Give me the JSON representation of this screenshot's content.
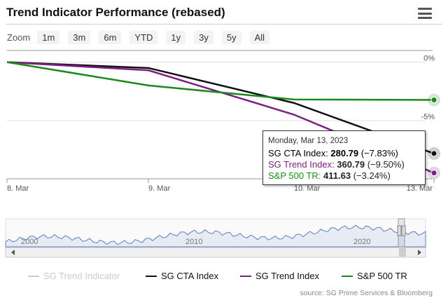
{
  "header": {
    "title": "Trend Indicator Performance (rebased)",
    "menu_icon": "hamburger-menu-icon"
  },
  "zoom": {
    "label": "Zoom",
    "buttons": [
      "1m",
      "3m",
      "6m",
      "YTD",
      "1y",
      "3y",
      "5y",
      "All"
    ]
  },
  "tooltip": {
    "date": "Monday, Mar 13, 2023",
    "rows": [
      {
        "name": "SG CTA Index",
        "value": "280.79",
        "change": "(−7.83%)",
        "color": "#222222"
      },
      {
        "name": "SG Trend Index",
        "value": "360.79",
        "change": "(−9.50%)",
        "color": "#7b1f83"
      },
      {
        "name": "S&P 500 TR",
        "value": "411.63",
        "change": "(−3.24%)",
        "color": "#1b8a1b"
      }
    ]
  },
  "legend": [
    {
      "name": "SG Trend Indicator",
      "color": "#cccccc",
      "hidden": true
    },
    {
      "name": "SG CTA Index",
      "color": "#111111"
    },
    {
      "name": "SG Trend Index",
      "color": "#7b1f83"
    },
    {
      "name": "S&P 500 TR",
      "color": "#1b8a1b"
    }
  ],
  "credit": "source: SG Prime Services & Bloomberg",
  "chart_data": {
    "type": "line",
    "x": [
      "8. Mar",
      "9. Mar",
      "10. Mar",
      "13. Mar"
    ],
    "xtick_labels": [
      "8. Mar",
      "9. Mar",
      "10. Mar",
      "13. Mar"
    ],
    "ytick_labels": [
      "0%",
      "-5%"
    ],
    "ylim": [
      -10,
      1
    ],
    "grid": true,
    "legend_position": "bottom",
    "series": [
      {
        "name": "SG CTA Index",
        "color": "#111111",
        "values": [
          0,
          -0.5,
          -3.5,
          -7.83
        ]
      },
      {
        "name": "SG Trend Index",
        "color": "#7b1f83",
        "values": [
          0,
          -0.7,
          -4.5,
          -9.5
        ]
      },
      {
        "name": "S&P 500 TR",
        "color": "#1b8a1b",
        "values": [
          0,
          -2.0,
          -3.2,
          -3.24
        ]
      }
    ],
    "navigator": {
      "xtick_labels": [
        "2000",
        "2010",
        "2020"
      ]
    }
  }
}
